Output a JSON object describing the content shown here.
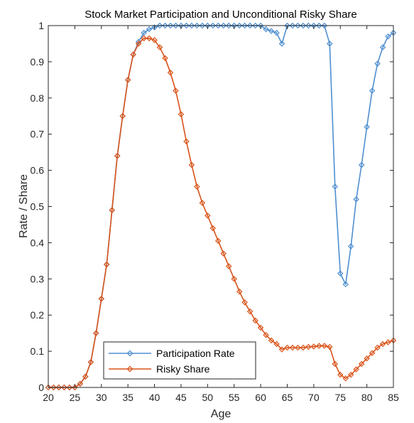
{
  "chart_data": {
    "type": "line",
    "title": "Stock Market Participation and Unconditional Risky Share",
    "xlabel": "Age",
    "ylabel": "Rate / Share",
    "xlim": [
      20,
      85
    ],
    "ylim": [
      0,
      1
    ],
    "xticks": [
      "20",
      "25",
      "30",
      "35",
      "40",
      "45",
      "50",
      "55",
      "60",
      "65",
      "70",
      "75",
      "80",
      "85"
    ],
    "yticks": [
      "0",
      "0.1",
      "0.2",
      "0.3",
      "0.4",
      "0.5",
      "0.6",
      "0.7",
      "0.8",
      "0.9",
      "1"
    ],
    "grid": false,
    "legend_position": "bottom-left",
    "x": [
      20,
      21,
      22,
      23,
      24,
      25,
      26,
      27,
      28,
      29,
      30,
      31,
      32,
      33,
      34,
      35,
      36,
      37,
      38,
      39,
      40,
      41,
      42,
      43,
      44,
      45,
      46,
      47,
      48,
      49,
      50,
      51,
      52,
      53,
      54,
      55,
      56,
      57,
      58,
      59,
      60,
      61,
      62,
      63,
      64,
      65,
      66,
      67,
      68,
      69,
      70,
      71,
      72,
      73,
      74,
      75,
      76,
      77,
      78,
      79,
      80,
      81,
      82,
      83,
      84,
      85
    ],
    "series": [
      {
        "name": "Participation Rate",
        "color": "#4f8fd0",
        "marker": "diamond",
        "values": [
          0,
          0,
          0,
          0,
          0,
          0,
          0.01,
          0.03,
          0.07,
          0.15,
          0.245,
          0.34,
          0.49,
          0.64,
          0.75,
          0.85,
          0.92,
          0.955,
          0.98,
          0.99,
          0.995,
          1,
          1,
          1,
          1,
          1,
          1,
          1,
          1,
          1,
          1,
          1,
          1,
          1,
          1,
          1,
          1,
          1,
          1,
          1,
          1,
          0.99,
          0.985,
          0.98,
          0.95,
          1,
          1,
          1,
          1,
          1,
          1,
          1,
          1,
          0.95,
          0.555,
          0.315,
          0.285,
          0.39,
          0.52,
          0.615,
          0.72,
          0.82,
          0.895,
          0.94,
          0.97,
          0.98
        ]
      },
      {
        "name": "Risky Share",
        "color": "#d95319",
        "marker": "diamond",
        "values": [
          0,
          0,
          0,
          0,
          0,
          0,
          0.01,
          0.03,
          0.07,
          0.15,
          0.245,
          0.34,
          0.49,
          0.64,
          0.75,
          0.85,
          0.92,
          0.95,
          0.965,
          0.965,
          0.96,
          0.94,
          0.91,
          0.87,
          0.82,
          0.755,
          0.68,
          0.615,
          0.555,
          0.51,
          0.475,
          0.44,
          0.405,
          0.37,
          0.335,
          0.3,
          0.265,
          0.235,
          0.21,
          0.185,
          0.165,
          0.145,
          0.13,
          0.12,
          0.105,
          0.11,
          0.11,
          0.11,
          0.11,
          0.112,
          0.113,
          0.115,
          0.115,
          0.112,
          0.065,
          0.035,
          0.025,
          0.035,
          0.05,
          0.065,
          0.08,
          0.095,
          0.11,
          0.12,
          0.125,
          0.13
        ]
      }
    ]
  }
}
